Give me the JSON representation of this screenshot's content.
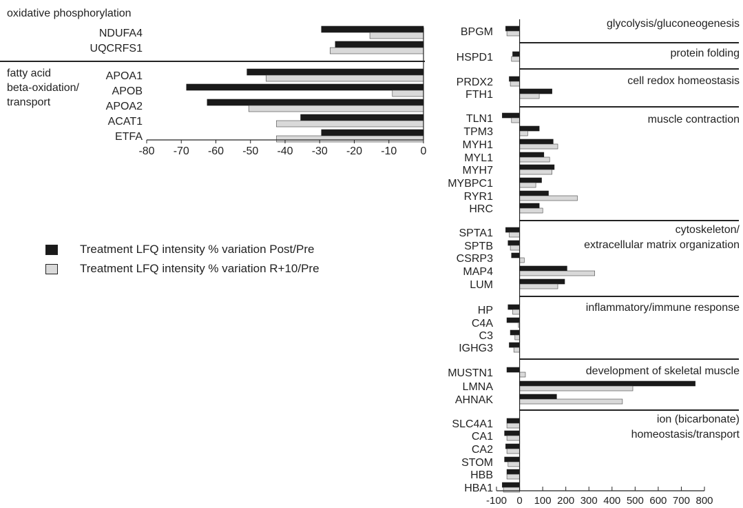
{
  "colors": {
    "post": "#1a1a1a",
    "r10": "#d9d9d9",
    "outline": "#444444",
    "axis": "#222222"
  },
  "legend": {
    "post_label": "Treatment LFQ intensity % variation Post/Pre",
    "r10_label": "Treatment LFQ intensity % variation R+10/Pre"
  },
  "chart_data": [
    {
      "type": "bar",
      "orientation": "horizontal",
      "xlim": [
        -80,
        0
      ],
      "xticks": [
        -80,
        -70,
        -60,
        -50,
        -40,
        -30,
        -20,
        -10,
        0
      ],
      "series": [
        {
          "name": "Treatment LFQ intensity % variation Post/Pre",
          "key": "post"
        },
        {
          "name": "Treatment LFQ intensity % variation R+10/Pre",
          "key": "r10"
        }
      ],
      "groups": [
        {
          "label_lines": [
            "oxidative phosphorylation"
          ],
          "proteins": [
            {
              "name": "NDUFA4",
              "post": -29.5,
              "r10": -15.5
            },
            {
              "name": "UQCRFS1",
              "post": -25.5,
              "r10": -27
            }
          ]
        },
        {
          "label_lines": [
            "fatty acid",
            "beta-oxidation/",
            "transport"
          ],
          "proteins": [
            {
              "name": "APOA1",
              "post": -51,
              "r10": -45.5
            },
            {
              "name": "APOB",
              "post": -68.5,
              "r10": -9
            },
            {
              "name": "APOA2",
              "post": -62.5,
              "r10": -50.5
            },
            {
              "name": "ACAT1",
              "post": -35.5,
              "r10": -42.5
            },
            {
              "name": "ETFA",
              "post": -29.5,
              "r10": -42.5
            }
          ]
        }
      ]
    },
    {
      "type": "bar",
      "orientation": "horizontal",
      "xlim": [
        -100,
        800
      ],
      "xticks": [
        -100,
        0,
        100,
        200,
        300,
        400,
        500,
        600,
        700,
        800
      ],
      "series": [
        {
          "name": "Treatment LFQ intensity % variation Post/Pre",
          "key": "post"
        },
        {
          "name": "Treatment LFQ intensity % variation R+10/Pre",
          "key": "r10"
        }
      ],
      "groups": [
        {
          "label_lines": [
            "glycolysis/gluconeogenesis"
          ],
          "proteins": [
            {
              "name": "BPGM",
              "post": -60,
              "r10": -55
            }
          ]
        },
        {
          "label_lines": [
            "protein folding"
          ],
          "proteins": [
            {
              "name": "HSPD1",
              "post": -30,
              "r10": -35
            }
          ]
        },
        {
          "label_lines": [
            "cell redox homeostasis"
          ],
          "proteins": [
            {
              "name": "PRDX2",
              "post": -45,
              "r10": -40
            },
            {
              "name": "FTH1",
              "post": 140,
              "r10": 85
            }
          ]
        },
        {
          "label_lines": [
            "muscle contraction"
          ],
          "proteins": [
            {
              "name": "TLN1",
              "post": -75,
              "r10": -35
            },
            {
              "name": "TPM3",
              "post": 85,
              "r10": 35
            },
            {
              "name": "MYH1",
              "post": 145,
              "r10": 165
            },
            {
              "name": "MYL1",
              "post": 105,
              "r10": 130
            },
            {
              "name": "MYH7",
              "post": 150,
              "r10": 140
            },
            {
              "name": "MYBPC1",
              "post": 95,
              "r10": 70
            },
            {
              "name": "RYR1",
              "post": 125,
              "r10": 250
            },
            {
              "name": "HRC",
              "post": 85,
              "r10": 100
            }
          ]
        },
        {
          "label_lines": [
            "cytoskeleton/",
            "extracellular matrix organization"
          ],
          "proteins": [
            {
              "name": "SPTA1",
              "post": -60,
              "r10": -45
            },
            {
              "name": "SPTB",
              "post": -50,
              "r10": -40
            },
            {
              "name": "CSRP3",
              "post": -35,
              "r10": 20
            },
            {
              "name": "MAP4",
              "post": 205,
              "r10": 325
            },
            {
              "name": "LUM",
              "post": 195,
              "r10": 165
            }
          ]
        },
        {
          "label_lines": [
            "inflammatory/immune response"
          ],
          "proteins": [
            {
              "name": "HP",
              "post": -50,
              "r10": -30
            },
            {
              "name": "C4A",
              "post": -55,
              "r10": -5
            },
            {
              "name": "C3",
              "post": -40,
              "r10": -20
            },
            {
              "name": "IGHG3",
              "post": -45,
              "r10": -25
            }
          ]
        },
        {
          "label_lines": [
            "development of skeletal muscle"
          ],
          "proteins": [
            {
              "name": "MUSTN1",
              "post": -55,
              "r10": 25
            },
            {
              "name": "LMNA",
              "post": 760,
              "r10": 490
            },
            {
              "name": "AHNAK",
              "post": 160,
              "r10": 445
            }
          ]
        },
        {
          "label_lines": [
            "ion (bicarbonate)",
            "homeostasis/transport"
          ],
          "proteins": [
            {
              "name": "SLC4A1",
              "post": -55,
              "r10": -55
            },
            {
              "name": "CA1",
              "post": -65,
              "r10": -55
            },
            {
              "name": "CA2",
              "post": -60,
              "r10": -55
            },
            {
              "name": "STOM",
              "post": -65,
              "r10": -50
            },
            {
              "name": "HBB",
              "post": -55,
              "r10": -55
            },
            {
              "name": "HBA1",
              "post": -75,
              "r10": -70
            }
          ]
        }
      ]
    }
  ]
}
